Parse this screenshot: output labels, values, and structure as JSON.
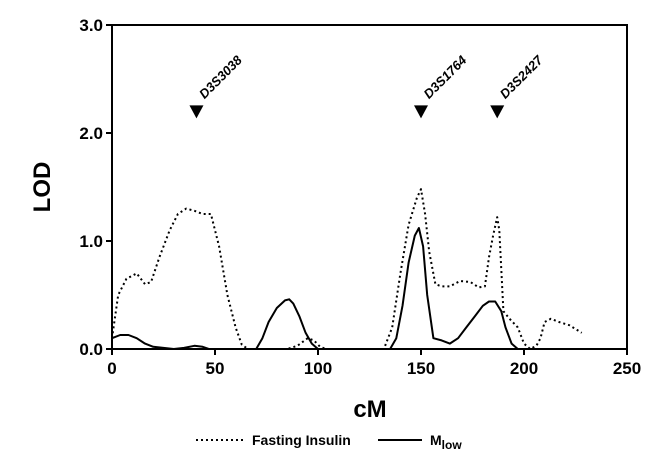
{
  "chart_data": {
    "type": "line",
    "xlabel": "cM",
    "ylabel": "LOD",
    "xlim": [
      0,
      250
    ],
    "ylim": [
      0,
      3.0
    ],
    "x_ticks": [
      "0",
      "50",
      "100",
      "150",
      "200",
      "250"
    ],
    "y_ticks": [
      "0.0",
      "1.0",
      "2.0",
      "3.0"
    ],
    "grid": false,
    "legend_position": "bottom",
    "markers": [
      {
        "name": "D3S3038",
        "x": 41,
        "y": 2.2
      },
      {
        "name": "D3S1764",
        "x": 150,
        "y": 2.2
      },
      {
        "name": "D3S2427",
        "x": 187,
        "y": 2.2
      }
    ],
    "series": [
      {
        "name": "Fasting Insulin",
        "style": "dotted",
        "x": [
          0,
          3,
          7,
          12,
          16,
          19,
          23,
          28,
          32,
          36,
          40,
          44,
          48,
          52,
          56,
          60,
          63,
          66,
          69,
          72,
          76,
          80,
          85,
          90,
          95,
          98,
          101,
          104,
          108,
          120,
          132,
          136,
          140,
          144,
          148,
          150,
          152,
          154,
          157,
          160,
          164,
          169,
          174,
          178,
          181,
          183,
          185,
          187,
          188,
          190,
          193,
          197,
          200,
          203,
          206,
          208,
          210,
          213,
          217,
          222,
          228
        ],
        "values": [
          0.1,
          0.5,
          0.65,
          0.7,
          0.6,
          0.62,
          0.85,
          1.1,
          1.25,
          1.3,
          1.28,
          1.25,
          1.25,
          0.95,
          0.5,
          0.2,
          0.04,
          0.0,
          0.0,
          0.0,
          0.0,
          0.0,
          0.0,
          0.03,
          0.1,
          0.08,
          0.02,
          0.0,
          0.0,
          0.0,
          0.0,
          0.2,
          0.7,
          1.15,
          1.4,
          1.48,
          1.25,
          0.9,
          0.6,
          0.58,
          0.58,
          0.63,
          0.62,
          0.57,
          0.58,
          0.85,
          1.05,
          1.22,
          1.1,
          0.35,
          0.28,
          0.2,
          0.05,
          0.0,
          0.03,
          0.1,
          0.25,
          0.28,
          0.25,
          0.22,
          0.15
        ]
      },
      {
        "name": "M",
        "name_subscript": "low",
        "style": "solid",
        "x": [
          0,
          4,
          8,
          12,
          16,
          20,
          25,
          30,
          35,
          40,
          44,
          47,
          50,
          55,
          65,
          70,
          73,
          76,
          80,
          84,
          86,
          88,
          91,
          94,
          97,
          100,
          103,
          110,
          125,
          135,
          138,
          141,
          144,
          147,
          149,
          151,
          153,
          156,
          160,
          164,
          168,
          172,
          176,
          180,
          183,
          186,
          189,
          191,
          194,
          197,
          200,
          205,
          212
        ],
        "values": [
          0.1,
          0.13,
          0.13,
          0.1,
          0.05,
          0.02,
          0.01,
          0.0,
          0.01,
          0.03,
          0.02,
          0.0,
          0.0,
          0.0,
          0.0,
          0.0,
          0.1,
          0.25,
          0.38,
          0.45,
          0.46,
          0.42,
          0.3,
          0.15,
          0.05,
          0.0,
          0.0,
          0.0,
          0.0,
          0.0,
          0.1,
          0.4,
          0.8,
          1.05,
          1.12,
          0.95,
          0.5,
          0.1,
          0.08,
          0.05,
          0.1,
          0.2,
          0.3,
          0.4,
          0.44,
          0.44,
          0.35,
          0.2,
          0.05,
          0.0,
          0.0,
          0.0,
          0.0
        ]
      }
    ]
  }
}
